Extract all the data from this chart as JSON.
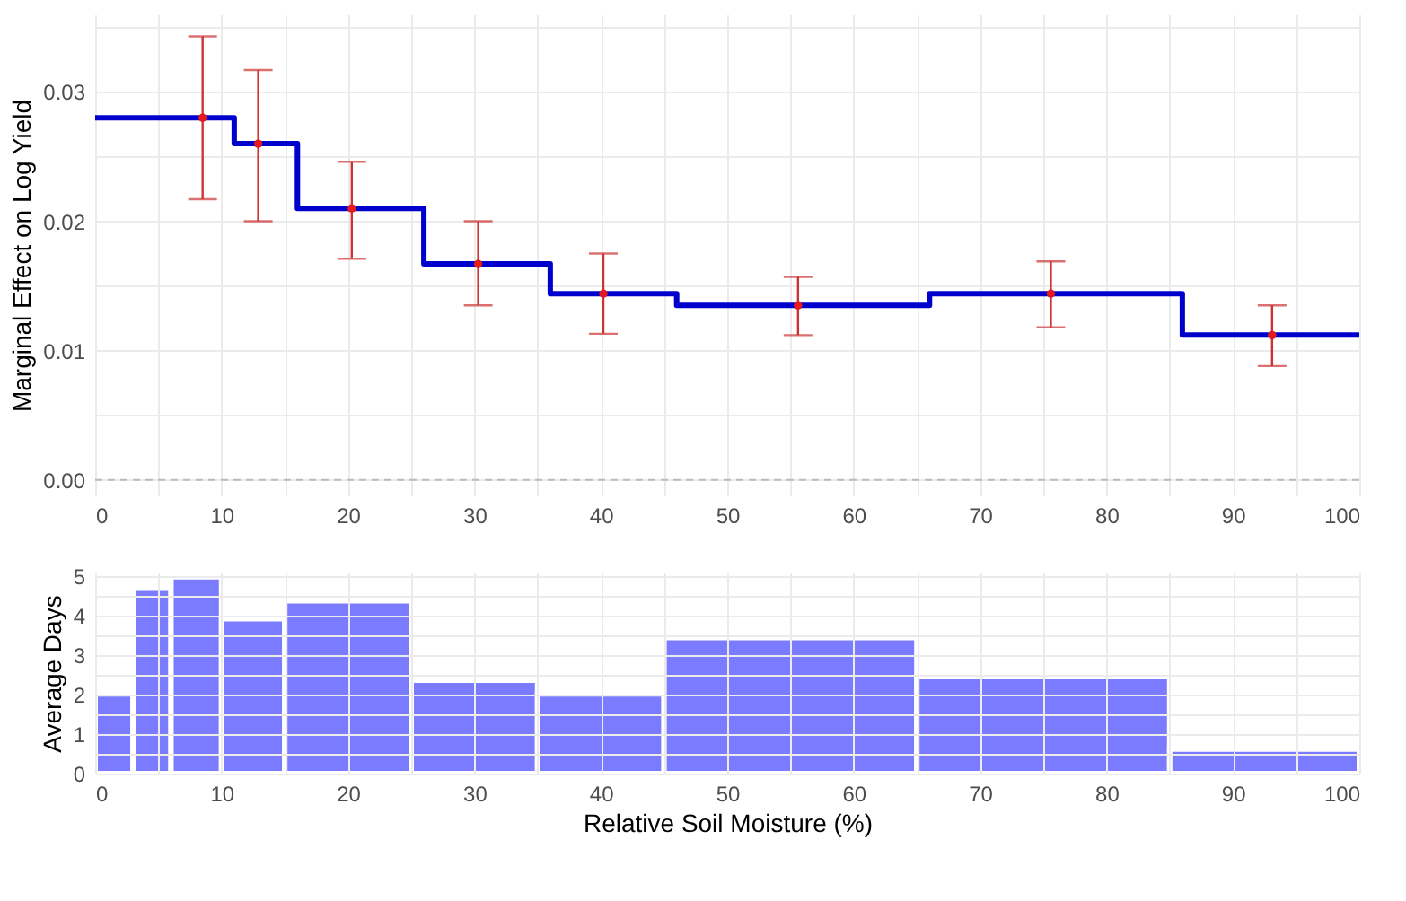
{
  "chart_data": [
    {
      "type": "line",
      "ylabel": "Marginal Effect on Log Yield",
      "xlim": [
        0,
        100
      ],
      "ylim": [
        -0.0012,
        0.036
      ],
      "xticks": [
        0,
        {
          "value": 5,
          "label": null
        },
        10,
        {
          "value": 15,
          "label": null
        },
        20,
        {
          "value": 25,
          "label": null
        },
        30,
        {
          "value": 35,
          "label": null
        },
        40,
        {
          "value": 45,
          "label": null
        },
        50,
        {
          "value": 55,
          "label": null
        },
        60,
        {
          "value": 65,
          "label": null
        },
        70,
        {
          "value": 75,
          "label": null
        },
        80,
        {
          "value": 85,
          "label": null
        },
        90,
        {
          "value": 95,
          "label": null
        },
        100
      ],
      "yticks": [
        {
          "value": 0,
          "label": "0.00"
        },
        {
          "value": 0.005,
          "label": null
        },
        {
          "value": 0.01,
          "label": "0.01"
        },
        {
          "value": 0.015,
          "label": null
        },
        {
          "value": 0.02,
          "label": "0.02"
        },
        {
          "value": 0.025,
          "label": null
        },
        {
          "value": 0.03,
          "label": "0.03"
        },
        {
          "value": 0.035,
          "label": null
        }
      ],
      "grid": true,
      "ref_lines": [
        {
          "axis": "y",
          "value": 0,
          "color": "#bbbbbb",
          "line_style": "dashed"
        }
      ],
      "series": [
        {
          "type": "step",
          "color": "#0000cc",
          "line_style": "solid",
          "x": [
            0,
            11,
            16,
            26,
            36,
            46,
            66,
            86,
            100
          ],
          "values": [
            0.028,
            0.026,
            0.021,
            0.0167,
            0.0144,
            0.0135,
            0.0144,
            0.0112,
            0.0112
          ]
        },
        {
          "type": "scatter",
          "color": "#e41a1c",
          "marker": "circle",
          "x": [
            8.5,
            12.9,
            20.3,
            30.3,
            40.2,
            55.6,
            75.6,
            93.1
          ],
          "values": [
            0.028,
            0.026,
            0.021,
            0.0167,
            0.0144,
            0.0135,
            0.0144,
            0.0112
          ],
          "errors": [
            [
              0.0217,
              0.0343
            ],
            [
              0.02,
              0.0317
            ],
            [
              0.0171,
              0.0246
            ],
            [
              0.0135,
              0.02
            ],
            [
              0.0113,
              0.0175
            ],
            [
              0.0112,
              0.0157
            ],
            [
              0.0118,
              0.0169
            ],
            [
              0.0088,
              0.0135
            ]
          ]
        }
      ]
    },
    {
      "type": "histogram",
      "xlabel": "Relative Soil Moisture (%)",
      "ylabel": "Average Days",
      "color": "#7b7bff",
      "xlim": [
        0,
        100
      ],
      "ylim": [
        0,
        5.1
      ],
      "xticks": [
        0,
        {
          "value": 5,
          "label": null
        },
        10,
        {
          "value": 15,
          "label": null
        },
        20,
        {
          "value": 25,
          "label": null
        },
        30,
        {
          "value": 35,
          "label": null
        },
        40,
        {
          "value": 45,
          "label": null
        },
        50,
        {
          "value": 55,
          "label": null
        },
        60,
        {
          "value": 65,
          "label": null
        },
        70,
        {
          "value": 75,
          "label": null
        },
        80,
        {
          "value": 85,
          "label": null
        },
        90,
        {
          "value": 95,
          "label": null
        },
        100
      ],
      "yticks": [
        0,
        {
          "value": 0.5,
          "label": null
        },
        1,
        {
          "value": 1.5,
          "label": null
        },
        2,
        {
          "value": 2.5,
          "label": null
        },
        3,
        {
          "value": 3.5,
          "label": null
        },
        4,
        {
          "value": 4.5,
          "label": null
        },
        5
      ],
      "grid": true,
      "bins": [
        0,
        3,
        6,
        10,
        15,
        25,
        35,
        45,
        65,
        85,
        100
      ],
      "values": [
        2.02,
        4.7,
        4.99,
        3.93,
        4.38,
        2.37,
        2.02,
        3.45,
        2.46,
        0.62
      ]
    }
  ]
}
